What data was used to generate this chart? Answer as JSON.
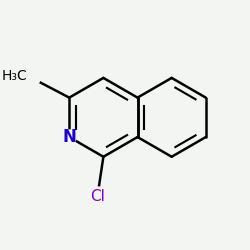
{
  "background_color": "#f2f5f2",
  "bond_color": "#000000",
  "bond_lw": 1.8,
  "dbo": 0.03,
  "label_styles": {
    "N": {
      "color": "#2200cc",
      "fontsize": 12,
      "weight": "bold"
    },
    "Cl": {
      "color": "#8800bb",
      "fontsize": 11,
      "weight": "normal"
    },
    "Me": {
      "color": "#000000",
      "fontsize": 10,
      "weight": "normal"
    }
  },
  "xlim": [
    0.0,
    1.0
  ],
  "ylim": [
    0.0,
    1.0
  ]
}
